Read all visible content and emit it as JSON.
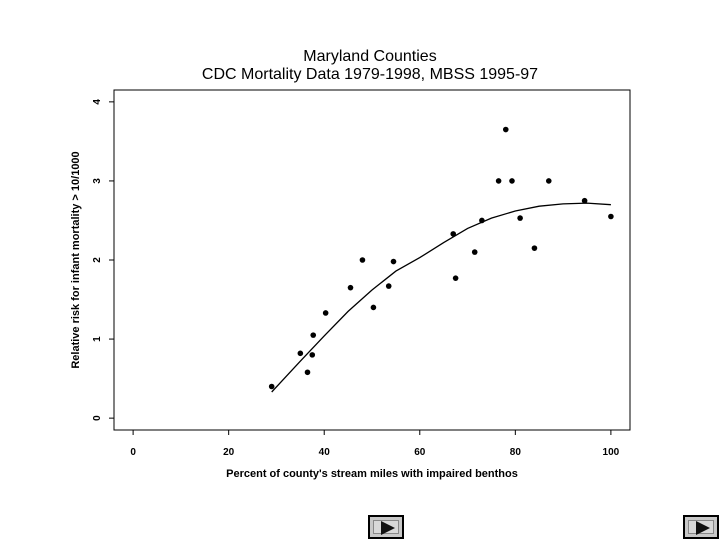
{
  "chart_data": {
    "type": "scatter",
    "title": "Maryland Counties",
    "subtitle": "CDC Mortality Data 1979-1998, MBSS 1995-97",
    "xlabel": "Percent of county's stream miles with impaired benthos",
    "ylabel": "Relative risk for infant mortality > 10/1000",
    "xlim": [
      -4,
      104
    ],
    "ylim": [
      -0.15,
      4.15
    ],
    "xticks": [
      0,
      20,
      40,
      60,
      80,
      100
    ],
    "yticks": [
      0,
      1,
      2,
      3,
      4
    ],
    "grid": false,
    "points": [
      {
        "x": 29,
        "y": 0.4
      },
      {
        "x": 35,
        "y": 0.82
      },
      {
        "x": 36.5,
        "y": 0.58
      },
      {
        "x": 37.5,
        "y": 0.8
      },
      {
        "x": 37.7,
        "y": 1.05
      },
      {
        "x": 40.3,
        "y": 1.33
      },
      {
        "x": 45.5,
        "y": 1.65
      },
      {
        "x": 48,
        "y": 2.0
      },
      {
        "x": 50.3,
        "y": 1.4
      },
      {
        "x": 53.5,
        "y": 1.67
      },
      {
        "x": 54.5,
        "y": 1.98
      },
      {
        "x": 67,
        "y": 2.33
      },
      {
        "x": 67.5,
        "y": 1.77
      },
      {
        "x": 71.5,
        "y": 2.1
      },
      {
        "x": 73,
        "y": 2.5
      },
      {
        "x": 76.5,
        "y": 3.0
      },
      {
        "x": 78,
        "y": 3.65
      },
      {
        "x": 79.3,
        "y": 3.0
      },
      {
        "x": 81,
        "y": 2.53
      },
      {
        "x": 84,
        "y": 2.15
      },
      {
        "x": 87,
        "y": 3.0
      },
      {
        "x": 94.5,
        "y": 2.75
      },
      {
        "x": 100,
        "y": 2.55
      }
    ],
    "smooth_curve": [
      {
        "x": 29,
        "y": 0.33
      },
      {
        "x": 35,
        "y": 0.72
      },
      {
        "x": 40,
        "y": 1.04
      },
      {
        "x": 45,
        "y": 1.35
      },
      {
        "x": 50,
        "y": 1.62
      },
      {
        "x": 55,
        "y": 1.86
      },
      {
        "x": 60,
        "y": 2.03
      },
      {
        "x": 65,
        "y": 2.22
      },
      {
        "x": 70,
        "y": 2.4
      },
      {
        "x": 75,
        "y": 2.53
      },
      {
        "x": 80,
        "y": 2.62
      },
      {
        "x": 85,
        "y": 2.68
      },
      {
        "x": 90,
        "y": 2.71
      },
      {
        "x": 95,
        "y": 2.72
      },
      {
        "x": 100,
        "y": 2.7
      }
    ]
  },
  "nav": {
    "buttons": [
      {
        "name": "next-slide-button",
        "icon": "play-arrow-icon"
      },
      {
        "name": "last-slide-button",
        "icon": "play-arrow-icon"
      }
    ]
  }
}
